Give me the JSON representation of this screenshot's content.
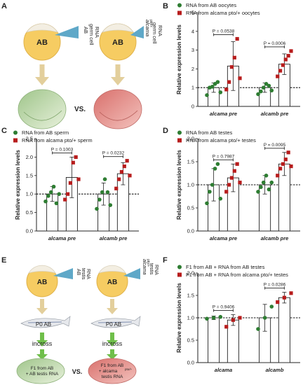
{
  "panels": {
    "A": "A",
    "B": "B",
    "C": "C",
    "D": "D",
    "E": "E",
    "F": "F"
  },
  "illustrations": {
    "A": {
      "embryo_label": "AB",
      "left_injection": [
        "AB",
        "germ cell",
        "RNA"
      ],
      "right_injection": [
        "alcama",
        "pto/+",
        "germ cell",
        "RNA"
      ],
      "vs": "VS."
    },
    "E": {
      "embryo_label": "AB",
      "left_injection": [
        "AB",
        "testis",
        "RNA"
      ],
      "right_injection": [
        "alcama",
        "pto/+",
        "testis",
        "RNA"
      ],
      "fish_label": "P0 AB",
      "cross_label": "incross",
      "left_result": [
        "F1 from AB",
        "+ AB testis RNA"
      ],
      "right_result": [
        "F1 from AB",
        "+ alcama",
        "pto/+",
        "testis RNA"
      ],
      "vs": "VS."
    }
  },
  "colors": {
    "green": "#2e7d32",
    "red": "#b71c1c",
    "inject": "#5fa8c8",
    "arrow": "#e3cf9c",
    "green_arrow": "#6fbf4a",
    "yolk": "#f6cc62",
    "embryo_green": "#bfd8a8",
    "embryo_red": "#e28f8c"
  },
  "chart_data": [
    {
      "id": "B",
      "type": "bar",
      "categories": [
        "alcama pre",
        "alcamb pre"
      ],
      "ylabel": "Relative expression levels",
      "ylim": [
        0,
        5
      ],
      "yticks": [
        0,
        1,
        2,
        3,
        4,
        5
      ],
      "legend": [
        "RNA from AB oocytes",
        "RNA from alcama pto/+ oocytes"
      ],
      "series": [
        {
          "name": "RNA from AB oocytes",
          "color": "green",
          "means": [
            1.0,
            1.0
          ],
          "sd": [
            0.25,
            0.25
          ],
          "points": [
            [
              0.6,
              1.0,
              1.05,
              1.2,
              1.3,
              0.75
            ],
            [
              0.65,
              0.8,
              1.0,
              1.2,
              1.1,
              0.85
            ]
          ]
        },
        {
          "name": "RNA from alcama pto/+ oocytes",
          "color": "red",
          "means": [
            2.15,
            2.25
          ],
          "sd": [
            1.3,
            0.55
          ],
          "points": [
            [
              0.9,
              1.3,
              2.1,
              2.6,
              3.6,
              1.5
            ],
            [
              1.6,
              1.9,
              2.2,
              2.5,
              2.7,
              2.95
            ]
          ]
        }
      ],
      "comparisons": [
        {
          "category": 0,
          "p": "P = 0.0538"
        },
        {
          "category": 1,
          "p": "P = 0.0006"
        }
      ]
    },
    {
      "id": "C",
      "type": "bar",
      "categories": [
        "alcama pre",
        "alcamb pre"
      ],
      "ylabel": "Relative expression levels",
      "ylim": [
        0,
        2.5
      ],
      "yticks": [
        0.0,
        0.5,
        1.0,
        1.5,
        2.0,
        2.5
      ],
      "legend": [
        "RNA from AB sperm",
        "RNA from alcama pto/+ sperm"
      ],
      "series": [
        {
          "name": "RNA from AB sperm",
          "color": "green",
          "means": [
            1.0,
            1.0
          ],
          "sd": [
            0.2,
            0.3
          ],
          "points": [
            [
              0.8,
              0.95,
              1.05,
              1.2,
              0.75,
              1.0
            ],
            [
              0.6,
              0.85,
              1.05,
              1.4,
              1.05,
              0.7
            ]
          ]
        },
        {
          "name": "RNA from alcama pto/+ sperm",
          "color": "red",
          "means": [
            1.45,
            1.55
          ],
          "sd": [
            0.55,
            0.3
          ],
          "points": [
            [
              0.85,
              1.0,
              1.3,
              1.85,
              2.0,
              1.4
            ],
            [
              1.15,
              1.4,
              1.6,
              1.75,
              1.9,
              1.5
            ]
          ]
        }
      ],
      "comparisons": [
        {
          "category": 0,
          "p": "P = 0.1003"
        },
        {
          "category": 1,
          "p": "P = 0.0232"
        }
      ]
    },
    {
      "id": "D",
      "type": "bar",
      "categories": [
        "alcama pre",
        "alcamb pre"
      ],
      "ylabel": "Relative expression levels",
      "ylim": [
        0,
        2.0
      ],
      "yticks": [
        0.0,
        0.5,
        1.0,
        1.5,
        2.0
      ],
      "legend": [
        "RNA from AB testes",
        "RNA from alcama pto/+ testes"
      ],
      "series": [
        {
          "name": "RNA from AB testes",
          "color": "green",
          "means": [
            1.0,
            1.0
          ],
          "sd": [
            0.35,
            0.2
          ],
          "points": [
            [
              0.6,
              0.85,
              1.0,
              1.35,
              1.45,
              0.7
            ],
            [
              0.85,
              0.95,
              1.05,
              1.2,
              0.9,
              1.05
            ]
          ]
        },
        {
          "name": "RNA from alcama pto/+ testes",
          "color": "red",
          "means": [
            1.15,
            1.45
          ],
          "sd": [
            0.3,
            0.25
          ],
          "points": [
            [
              0.85,
              1.0,
              1.15,
              1.3,
              1.45,
              1.05
            ],
            [
              1.2,
              1.35,
              1.45,
              1.55,
              1.7,
              1.4
            ]
          ]
        }
      ],
      "comparisons": [
        {
          "category": 0,
          "p": "P = 0.7987"
        },
        {
          "category": 1,
          "p": "P = 0.0095"
        }
      ]
    },
    {
      "id": "F",
      "type": "bar",
      "categories": [
        "alcama",
        "alcamb"
      ],
      "ylabel": "Relative expression levels",
      "ylim": [
        0,
        2.0
      ],
      "yticks": [
        0.0,
        0.5,
        1.0,
        1.5,
        2.0
      ],
      "legend": [
        "F1 from AB + RNA from AB testes",
        "F1 from AB + RNA from alcama pto/+ testes"
      ],
      "series": [
        {
          "name": "F1 from AB + RNA from AB testes",
          "color": "green",
          "means": [
            1.0,
            1.0
          ],
          "sd": [
            0.04,
            0.3
          ],
          "points": [
            [
              0.98,
              1.0,
              1.02
            ],
            [
              0.75,
              1.0,
              1.25
            ]
          ]
        },
        {
          "name": "F1 from AB + RNA from alcama pto/+ testes",
          "color": "red",
          "means": [
            0.95,
            1.45
          ],
          "sd": [
            0.12,
            0.12
          ],
          "points": [
            [
              0.8,
              0.95,
              1.0
            ],
            [
              1.35,
              1.45,
              1.55
            ]
          ]
        }
      ],
      "comparisons": [
        {
          "category": 0,
          "p": "P = 0.9406"
        },
        {
          "category": 1,
          "p": "P = 0.0286"
        }
      ]
    }
  ]
}
